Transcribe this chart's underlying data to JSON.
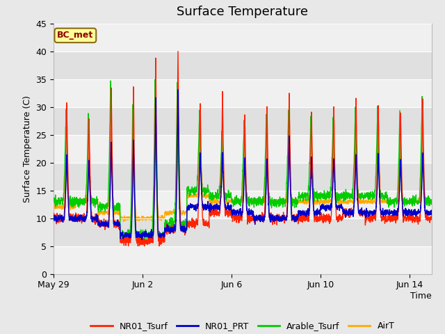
{
  "title": "Surface Temperature",
  "xlabel": "Time",
  "ylabel": "Surface Temperature (C)",
  "ylim": [
    0,
    45
  ],
  "bg_color": "#e8e8e8",
  "plot_bg_color": "#f0f0f0",
  "annotation_text": "BC_met",
  "annotation_bg": "#ffff99",
  "annotation_border": "#8b6914",
  "annotation_text_color": "#8b0000",
  "xtick_labels": [
    "May 29",
    "Jun 2",
    "Jun 6",
    "Jun 10",
    "Jun 14"
  ],
  "xtick_positions": [
    0,
    4,
    8,
    12,
    16
  ],
  "ytick_labels": [
    "0",
    "5",
    "10",
    "15",
    "20",
    "25",
    "30",
    "35",
    "40",
    "45"
  ],
  "ytick_positions": [
    0,
    5,
    10,
    15,
    20,
    25,
    30,
    35,
    40,
    45
  ],
  "legend_entries": [
    "NR01_Tsurf",
    "NR01_PRT",
    "Arable_Tsurf",
    "AirT"
  ],
  "line_colors": [
    "#ff2200",
    "#0000cc",
    "#00cc00",
    "#ffaa00"
  ],
  "figsize": [
    6.4,
    4.8
  ],
  "dpi": 100
}
